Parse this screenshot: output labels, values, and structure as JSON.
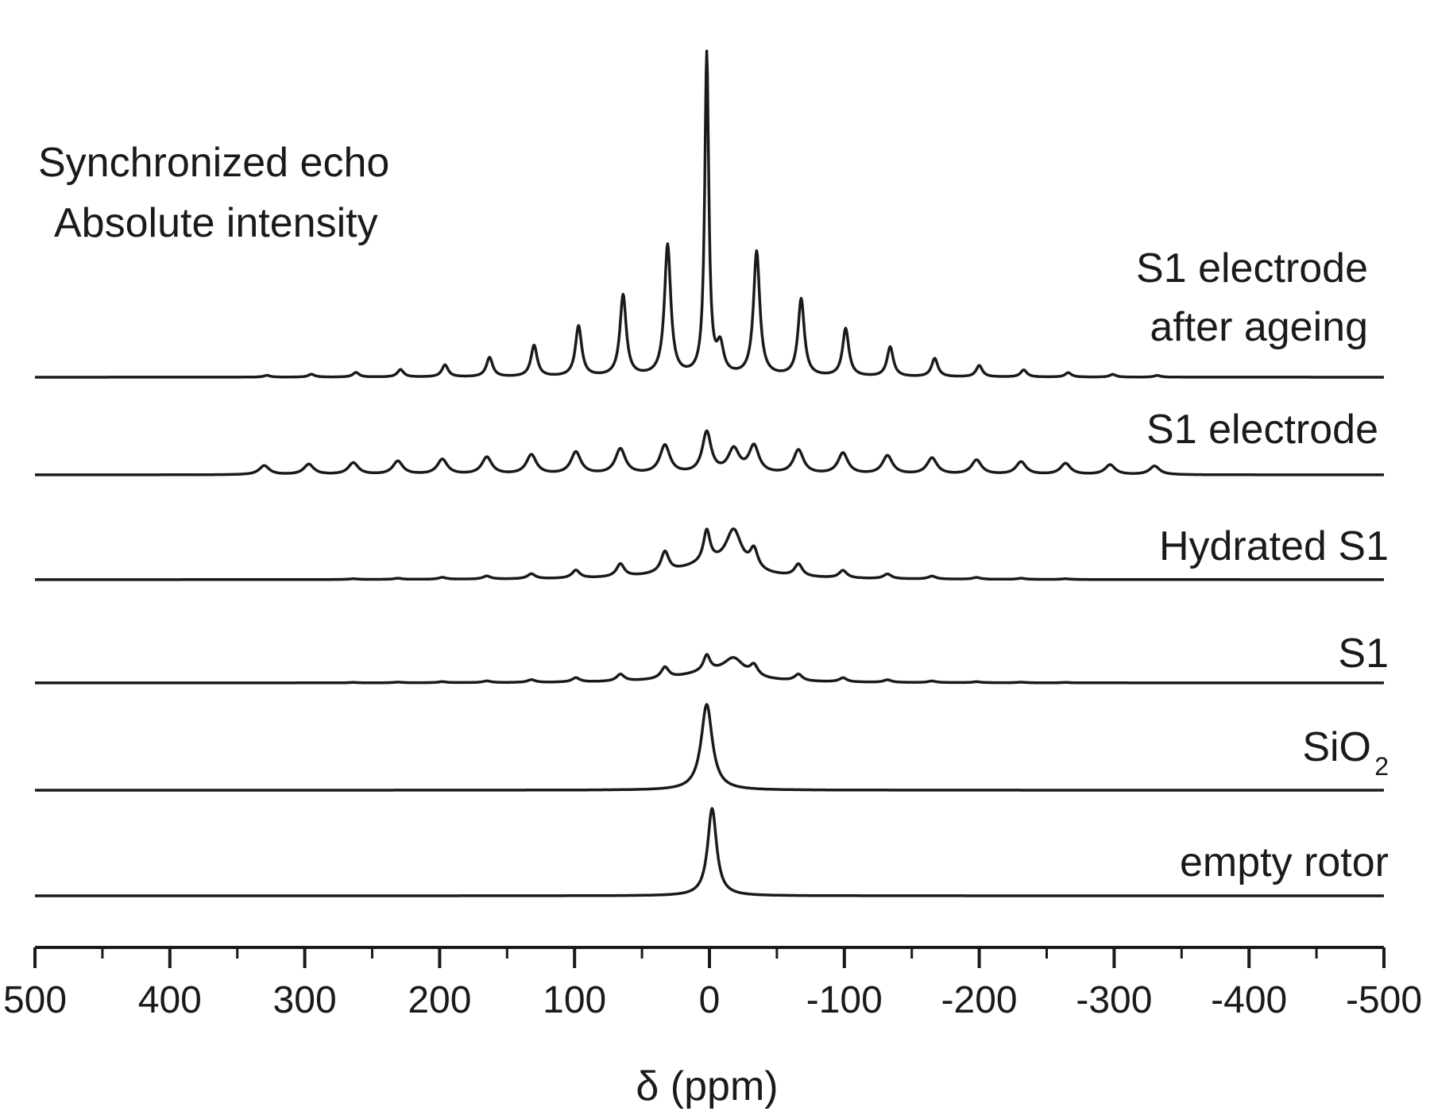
{
  "chart_data": {
    "type": "line",
    "title_lines": [
      "Synchronized echo",
      "Absolute intensity"
    ],
    "xlabel": "δ (ppm)",
    "ylabel": "",
    "xlim": [
      500,
      -500
    ],
    "x_reversed": true,
    "x_ticks": [
      "500",
      "400",
      "300",
      "200",
      "100",
      "0",
      "-100",
      "-200",
      "-300",
      "-400",
      "-500"
    ],
    "x_tick_values": [
      500,
      400,
      300,
      200,
      100,
      0,
      -100,
      -200,
      -300,
      -400,
      -500
    ],
    "minor_tick_step": 50,
    "y_axis_shown": false,
    "grid": false,
    "legend": "none (each trace labelled at right)",
    "spinning_sideband_spacing_ppm": 33,
    "series": [
      {
        "name": "empty rotor",
        "label_lines": [
          "empty rotor"
        ],
        "color": "#1a1a1a",
        "peaks": [
          {
            "ppm": -2,
            "intensity": 110,
            "width_ppm": 4
          }
        ],
        "sidebands": null
      },
      {
        "name": "SiO2",
        "label_lines": [
          "SiO"
        ],
        "label_subscript": "2",
        "color": "#1a1a1a",
        "peaks": [
          {
            "ppm": 2,
            "intensity": 108,
            "width_ppm": 5
          }
        ],
        "sidebands": null
      },
      {
        "name": "S1",
        "label_lines": [
          "S1"
        ],
        "color": "#1a1a1a",
        "peaks": [
          {
            "ppm": 2,
            "intensity": 20,
            "width_ppm": 3
          },
          {
            "ppm": -18,
            "intensity": 22,
            "width_ppm": 9
          },
          {
            "ppm": 0,
            "intensity": 12,
            "width_ppm": 30
          }
        ],
        "sidebands": {
          "center": 0,
          "step": 33,
          "count": 8,
          "base": 14,
          "decay": 0.62,
          "width_ppm": 3.5
        }
      },
      {
        "name": "Hydrated S1",
        "label_lines": [
          "Hydrated S1"
        ],
        "color": "#1a1a1a",
        "peaks": [
          {
            "ppm": 2,
            "intensity": 40,
            "width_ppm": 3
          },
          {
            "ppm": -18,
            "intensity": 48,
            "width_ppm": 7
          },
          {
            "ppm": 0,
            "intensity": 18,
            "width_ppm": 32
          }
        ],
        "sidebands": {
          "center": 0,
          "step": 33,
          "count": 8,
          "base": 26,
          "decay": 0.62,
          "width_ppm": 3.5
        }
      },
      {
        "name": "S1 electrode",
        "label_lines": [
          "S1 electrode"
        ],
        "color": "#1a1a1a",
        "peaks": [
          {
            "ppm": 2,
            "intensity": 52,
            "width_ppm": 4
          },
          {
            "ppm": -18,
            "intensity": 30,
            "width_ppm": 5
          }
        ],
        "sidebands": {
          "center": 0,
          "step": 33,
          "count": 10,
          "base": 36,
          "decay": 0.88,
          "width_ppm": 4.5
        }
      },
      {
        "name": "S1 electrode after ageing",
        "label_lines": [
          "S1 electrode",
          "after ageing"
        ],
        "color": "#1a1a1a",
        "peaks": [
          {
            "ppm": 2,
            "intensity": 405,
            "width_ppm": 1.8
          },
          {
            "ppm": -8,
            "intensity": 35,
            "width_ppm": 3
          }
        ],
        "sidebands": {
          "center": -2,
          "step": 33,
          "count": 10,
          "base": 165,
          "decay": 0.62,
          "width_ppm": 2.8
        }
      }
    ]
  }
}
